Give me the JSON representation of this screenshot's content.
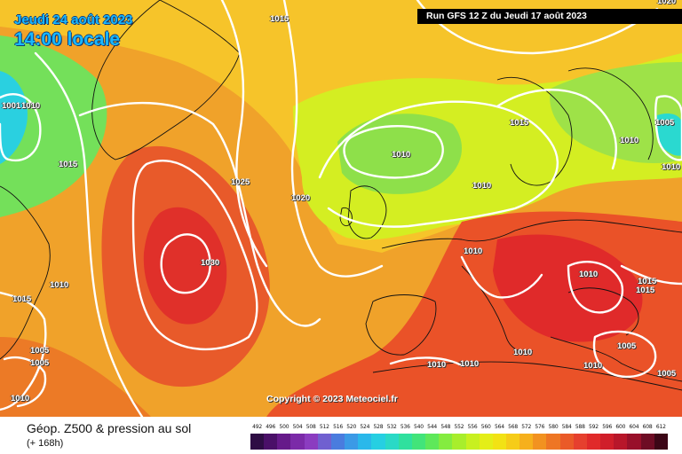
{
  "map": {
    "date_text": "Jeudi 24 août 2023",
    "time_text": "14:00 locale",
    "run_text": "Run GFS 12 Z du Jeudi 17 août 2023",
    "copyright_text": "Copyright © 2023 Meteociel.fr",
    "isobar_labels": [
      "1020",
      "1015",
      "1001",
      "1010",
      "1015",
      "1025",
      "1020",
      "1030",
      "1010",
      "1015",
      "1005",
      "1005",
      "1010",
      "1010",
      "1015",
      "1010",
      "1010",
      "1010",
      "1010",
      "1010",
      "1005",
      "1010",
      "1015",
      "1015",
      "1010",
      "1005",
      "1010",
      "1010",
      "1005"
    ]
  },
  "footer": {
    "title": "Géop. Z500 & pression au sol",
    "subtitle": "(+ 168h)"
  },
  "scale": {
    "ticks": [
      "492",
      "496",
      "500",
      "504",
      "508",
      "512",
      "516",
      "520",
      "524",
      "528",
      "532",
      "536",
      "540",
      "544",
      "548",
      "552",
      "556",
      "560",
      "564",
      "568",
      "572",
      "576",
      "580",
      "584",
      "588",
      "592",
      "596",
      "600",
      "604",
      "608",
      "612"
    ],
    "colors": [
      "#2e0d44",
      "#4a1068",
      "#661a8a",
      "#7b2aa8",
      "#8b3cc0",
      "#7060d0",
      "#4a7cde",
      "#3b9ae6",
      "#2ab8ea",
      "#26cfe2",
      "#2ad9c6",
      "#30e09e",
      "#42e47a",
      "#5ee85a",
      "#84ec40",
      "#a8ee2c",
      "#c8f020",
      "#e4ee18",
      "#f2e214",
      "#f6cc18",
      "#f6b01c",
      "#f29220",
      "#ee7624",
      "#ea5a28",
      "#e6402e",
      "#e02a2a",
      "#d01e2a",
      "#b8162a",
      "#98102a",
      "#6e0c24",
      "#3c0616"
    ]
  }
}
